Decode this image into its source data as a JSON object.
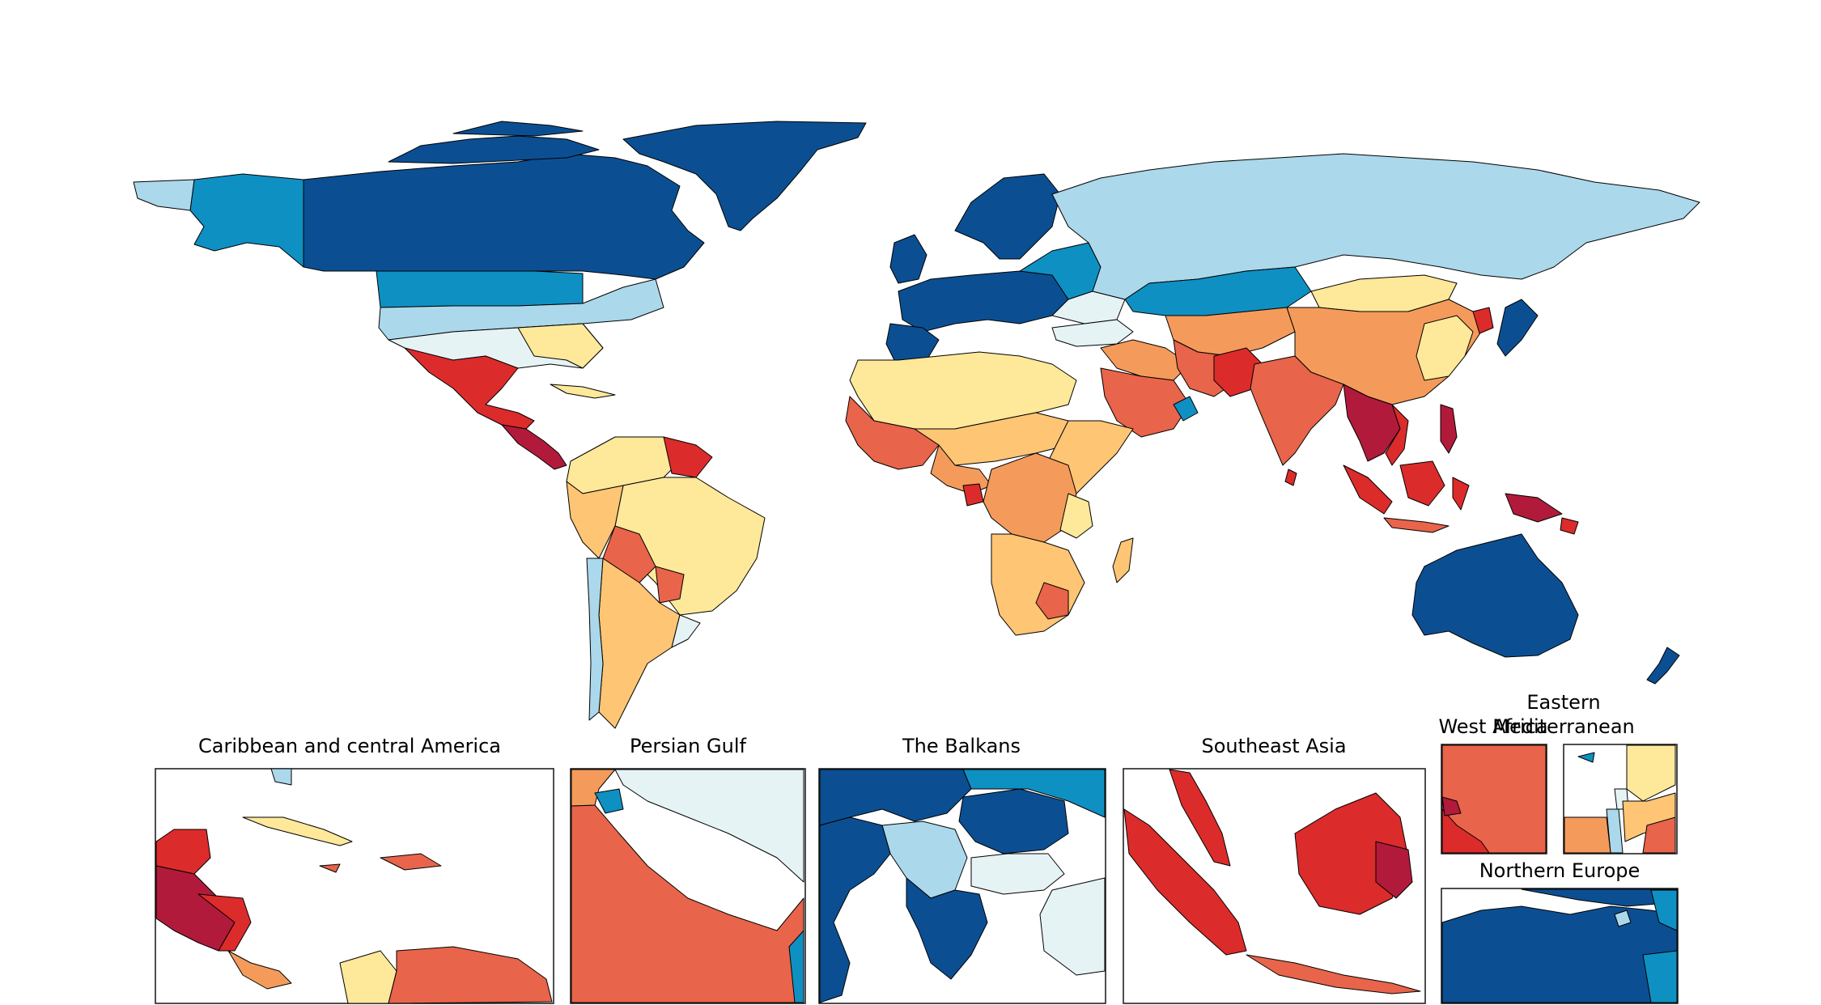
{
  "palette": {
    "dark_blue": "#0b4f92",
    "mid_blue": "#0f90c3",
    "light_blue": "#abd8ea",
    "pale_blue": "#e6f3f5",
    "pale_yellow": "#fee89a",
    "light_orange": "#fdc574",
    "orange": "#f49b5b",
    "red_orange": "#e8644a",
    "red": "#dc2b2b",
    "dark_red": "#b11a3b",
    "no_data": "#ffffff"
  },
  "insets": {
    "caribbean": "Caribbean and central America",
    "persian_gulf": "Persian Gulf",
    "balkans": "The Balkans",
    "southeast_asia": "Southeast Asia",
    "west_africa": "West Africa",
    "eastern_med_line1": "Eastern",
    "eastern_med_line2": "Mediterranean",
    "northern_europe": "Northern Europe"
  }
}
